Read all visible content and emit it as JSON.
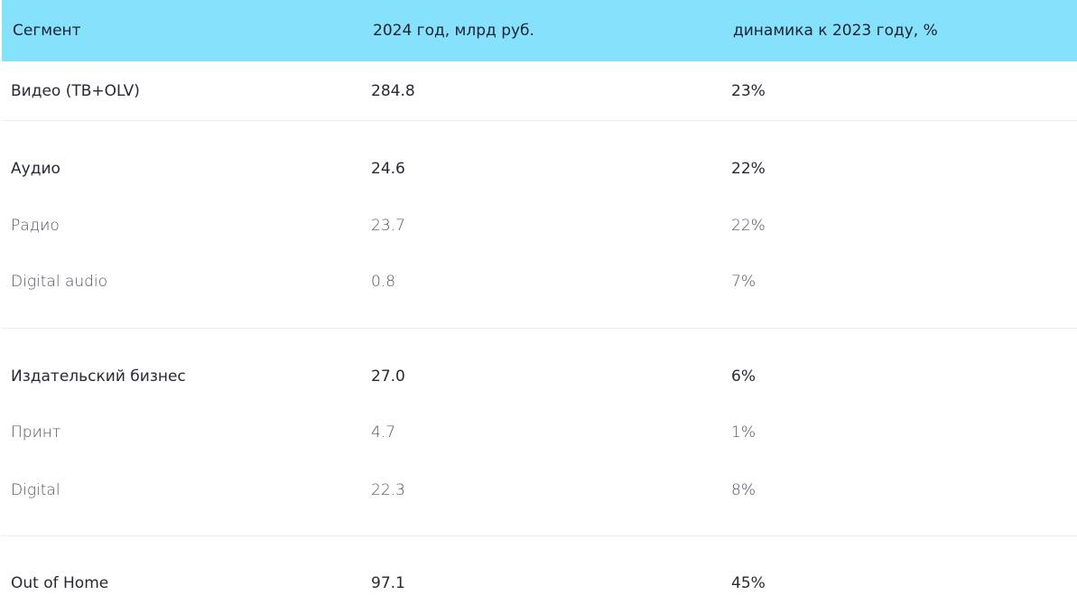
{
  "header": {
    "segment": "Сегмент",
    "value_2024": "2024 год, млрд руб.",
    "change": "динамика к 2023 году, %"
  },
  "rows": [
    {
      "segment": "Видео (ТВ+OLV)",
      "value": "284.8",
      "change": "23%",
      "level": "main"
    },
    {
      "segment": "Аудио",
      "value": "24.6",
      "change": "22%",
      "level": "main"
    },
    {
      "segment": "Радио",
      "value": "23.7",
      "change": "22%",
      "level": "sub"
    },
    {
      "segment": "Digital audio",
      "value": "0.8",
      "change": "7%",
      "level": "sub"
    },
    {
      "segment": "Издательский бизнес",
      "value": "27.0",
      "change": "6%",
      "level": "main"
    },
    {
      "segment": "Принт",
      "value": "4.7",
      "change": "1%",
      "level": "sub"
    },
    {
      "segment": "Digital",
      "value": "22.3",
      "change": "8%",
      "level": "sub"
    },
    {
      "segment": "Out of Home",
      "value": "97.1",
      "change": "45%",
      "level": "main"
    }
  ],
  "colors": {
    "header_background": "#86e1fd",
    "divider": "#e9ecf0",
    "text_primary": "#262a35",
    "text_secondary": "#4e5361"
  }
}
